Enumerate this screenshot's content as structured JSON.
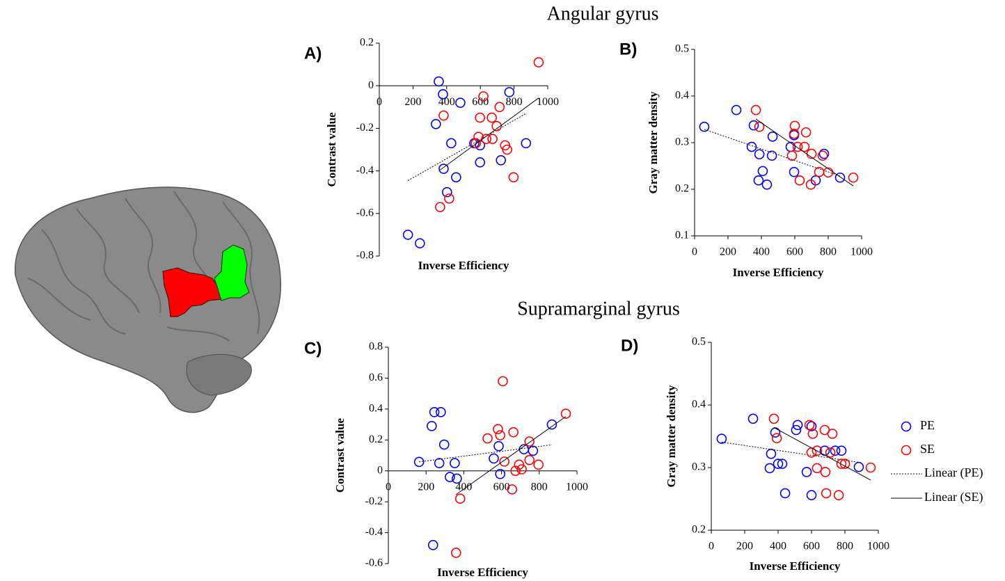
{
  "headings": [
    "Angular gyrus",
    "Supramarginal gyrus"
  ],
  "chart_data": [
    {
      "type": "scatter",
      "label": "A)",
      "x_label": "Inverse Efficiency",
      "y_label": "Contrast value",
      "xlim": [
        0,
        1000
      ],
      "ylim": [
        -0.8,
        0.2
      ],
      "xticks": [
        0,
        200,
        400,
        600,
        800,
        1000
      ],
      "yticks": [
        -0.8,
        -0.6,
        -0.4,
        -0.2,
        0,
        0.2
      ],
      "x_axis_position": 0,
      "series": [
        {
          "color": "#0000ff",
          "trendline": {
            "style": "dotted",
            "color": "#000000"
          },
          "x": [
            353,
            378,
            481,
            772,
            336,
            427,
            382,
            456,
            402,
            564,
            598,
            598,
            722,
            871,
            170,
            241
          ],
          "y": [
            0.02,
            -0.04,
            -0.08,
            -0.03,
            -0.18,
            -0.27,
            -0.39,
            -0.43,
            -0.5,
            -0.27,
            -0.28,
            -0.36,
            -0.35,
            -0.27,
            -0.7,
            -0.74
          ]
        },
        {
          "color": "#ff0000",
          "trendline": {
            "style": "solid",
            "color": "#000000"
          },
          "x": [
            946,
            618,
            382,
            598,
            668,
            714,
            697,
            589,
            635,
            672,
            573,
            747,
            759,
            415,
            361,
            797
          ],
          "y": [
            0.11,
            -0.05,
            -0.14,
            -0.15,
            -0.15,
            -0.1,
            -0.19,
            -0.24,
            -0.25,
            -0.25,
            -0.27,
            -0.28,
            -0.3,
            -0.53,
            -0.57,
            -0.43
          ]
        }
      ]
    },
    {
      "type": "scatter",
      "label": "B)",
      "x_label": "Inverse Efficiency",
      "y_label": "Gray matter density",
      "xlim": [
        0,
        1000
      ],
      "ylim": [
        0.1,
        0.5
      ],
      "xticks": [
        0,
        200,
        400,
        600,
        800,
        1000
      ],
      "yticks": [
        0.1,
        0.2,
        0.3,
        0.4,
        0.5
      ],
      "series": [
        {
          "color": "#0000ff",
          "trendline": {
            "style": "dotted",
            "color": "#000000"
          },
          "x": [
            58,
            250,
            354,
            342,
            388,
            467,
            463,
            408,
            383,
            433,
            575,
            596,
            725,
            775,
            871,
            596
          ],
          "y": [
            0.334,
            0.37,
            0.337,
            0.291,
            0.275,
            0.313,
            0.272,
            0.239,
            0.219,
            0.21,
            0.291,
            0.237,
            0.219,
            0.276,
            0.225,
            0.316
          ]
        },
        {
          "color": "#ff0000",
          "trendline": {
            "style": "solid",
            "color": "#000000"
          },
          "x": [
            367,
            388,
            600,
            596,
            617,
            658,
            667,
            700,
            583,
            629,
            696,
            767,
            746,
            800,
            950
          ],
          "y": [
            0.37,
            0.334,
            0.336,
            0.319,
            0.291,
            0.291,
            0.322,
            0.276,
            0.272,
            0.219,
            0.21,
            0.272,
            0.237,
            0.236,
            0.225
          ]
        }
      ]
    },
    {
      "type": "scatter",
      "label": "C)",
      "x_label": "Inverse Efficiency",
      "y_label": "Contrast value",
      "xlim": [
        0,
        1000
      ],
      "ylim": [
        -0.6,
        0.8
      ],
      "xticks": [
        0,
        200,
        400,
        600,
        800,
        1000
      ],
      "yticks": [
        -0.6,
        -0.4,
        -0.2,
        0,
        0.2,
        0.4,
        0.6,
        0.8
      ],
      "x_axis_position": 0,
      "series": [
        {
          "color": "#0000ff",
          "trendline": {
            "style": "dotted",
            "color": "#000000"
          },
          "x": [
            163,
            244,
            278,
            230,
            296,
            270,
            352,
            326,
            363,
            559,
            585,
            593,
            719,
            767,
            867,
            237
          ],
          "y": [
            0.058,
            0.38,
            0.38,
            0.29,
            0.17,
            0.05,
            0.05,
            -0.04,
            -0.05,
            0.08,
            0.16,
            -0.02,
            0.14,
            0.13,
            0.3,
            -0.48
          ]
        },
        {
          "color": "#ff0000",
          "trendline": {
            "style": "solid",
            "color": "#000000"
          },
          "x": [
            607,
            581,
            593,
            526,
            663,
            615,
            693,
            707,
            674,
            656,
            748,
            748,
            796,
            941,
            381,
            359
          ],
          "y": [
            0.58,
            0.27,
            0.23,
            0.21,
            0.25,
            0.06,
            0.04,
            0.01,
            0.0,
            -0.12,
            0.19,
            0.07,
            0.04,
            0.37,
            -0.18,
            -0.53
          ]
        }
      ]
    },
    {
      "type": "scatter",
      "label": "D)",
      "x_label": "Inverse Efficiency",
      "y_label": "Gray matter density",
      "xlim": [
        0,
        1000
      ],
      "ylim": [
        0.2,
        0.5
      ],
      "xticks": [
        0,
        200,
        400,
        600,
        800,
        1000
      ],
      "yticks": [
        0.2,
        0.3,
        0.4,
        0.5
      ],
      "legend": "right",
      "series": [
        {
          "name": "PE",
          "color": "#0000ff",
          "trendline": {
            "name": "Linear (PE)",
            "style": "dotted",
            "color": "#000000"
          },
          "x": [
            62,
            250,
            358,
            350,
            383,
            400,
            425,
            508,
            517,
            442,
            571,
            600,
            679,
            742,
            779,
            883,
            600
          ],
          "y": [
            0.346,
            0.378,
            0.322,
            0.299,
            0.356,
            0.306,
            0.306,
            0.36,
            0.368,
            0.259,
            0.293,
            0.366,
            0.327,
            0.327,
            0.327,
            0.301,
            0.256
          ]
        },
        {
          "name": "SE",
          "color": "#ff0000",
          "trendline": {
            "name": "Linear (SE)",
            "style": "solid",
            "color": "#000000"
          },
          "x": [
            375,
            392,
            588,
            608,
            679,
            725,
            600,
            633,
            633,
            683,
            713,
            779,
            800,
            688,
            763,
            954
          ],
          "y": [
            0.378,
            0.347,
            0.368,
            0.354,
            0.36,
            0.354,
            0.324,
            0.327,
            0.299,
            0.293,
            0.324,
            0.306,
            0.306,
            0.259,
            0.256,
            0.3
          ]
        }
      ]
    }
  ]
}
